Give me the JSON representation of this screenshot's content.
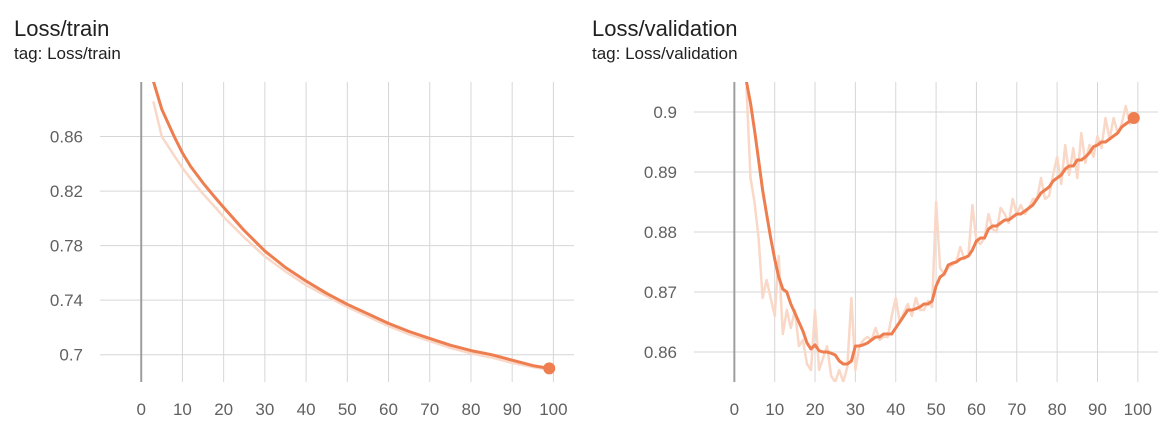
{
  "colors": {
    "line": "#ee7e4f",
    "raw": "#f9d8c8",
    "grid": "#d6d6d6",
    "axis": "#9e9e9e",
    "text": "#616161"
  },
  "cards": [
    {
      "title": "Loss/train",
      "tag": "tag: Loss/train"
    },
    {
      "title": "Loss/validation",
      "tag": "tag: Loss/validation"
    }
  ],
  "chart_data": [
    {
      "type": "line",
      "title": "Loss/train",
      "subtitle": "tag: Loss/train",
      "xlim": [
        -10,
        105
      ],
      "ylim": [
        0.68,
        0.9
      ],
      "xticks": [
        0,
        10,
        20,
        30,
        40,
        50,
        60,
        70,
        80,
        90,
        100
      ],
      "yticks": [
        0.7,
        0.74,
        0.78,
        0.82,
        0.86
      ],
      "ytick_labels": [
        "0.7",
        "0.74",
        "0.78",
        "0.82",
        "0.86"
      ],
      "grid": true,
      "series": [
        {
          "role": "smoothed",
          "x": [
            3,
            5,
            8,
            10,
            12,
            15,
            18,
            20,
            25,
            30,
            35,
            40,
            45,
            50,
            55,
            60,
            65,
            70,
            75,
            80,
            85,
            90,
            95,
            99
          ],
          "y": [
            0.9,
            0.88,
            0.86,
            0.848,
            0.838,
            0.826,
            0.815,
            0.808,
            0.791,
            0.776,
            0.764,
            0.754,
            0.745,
            0.737,
            0.73,
            0.723,
            0.717,
            0.712,
            0.707,
            0.703,
            0.7,
            0.696,
            0.692,
            0.69
          ]
        },
        {
          "role": "raw",
          "x": [
            3,
            5,
            8,
            10,
            12,
            15,
            18,
            20,
            25,
            30,
            35,
            40,
            45,
            50,
            55,
            60,
            65,
            70,
            75,
            80,
            85,
            90,
            95,
            99
          ],
          "y": [
            0.885,
            0.86,
            0.846,
            0.837,
            0.829,
            0.818,
            0.808,
            0.801,
            0.786,
            0.772,
            0.761,
            0.751,
            0.743,
            0.735,
            0.728,
            0.721,
            0.715,
            0.71,
            0.705,
            0.701,
            0.698,
            0.694,
            0.691,
            0.689
          ]
        }
      ],
      "last_point": {
        "x": 99,
        "y": 0.69
      }
    },
    {
      "type": "line",
      "title": "Loss/validation",
      "subtitle": "tag: Loss/validation",
      "xlim": [
        -10,
        105
      ],
      "ylim": [
        0.855,
        0.905
      ],
      "xticks": [
        0,
        10,
        20,
        30,
        40,
        50,
        60,
        70,
        80,
        90,
        100
      ],
      "yticks": [
        0.86,
        0.87,
        0.88,
        0.89,
        0.9
      ],
      "ytick_labels": [
        "0.86",
        "0.87",
        "0.88",
        "0.89",
        "0.9"
      ],
      "grid": true,
      "series": [
        {
          "role": "smoothed",
          "x": [
            3,
            4,
            5,
            6,
            7,
            8,
            9,
            10,
            11,
            12,
            13,
            14,
            15,
            16,
            17,
            18,
            19,
            20,
            21,
            22,
            23,
            24,
            25,
            26,
            27,
            28,
            29,
            30,
            31,
            32,
            33,
            34,
            35,
            36,
            37,
            38,
            39,
            40,
            41,
            42,
            43,
            44,
            45,
            46,
            47,
            48,
            49,
            50,
            51,
            52,
            53,
            54,
            55,
            56,
            57,
            58,
            59,
            60,
            61,
            62,
            63,
            64,
            65,
            66,
            67,
            68,
            69,
            70,
            71,
            72,
            73,
            74,
            75,
            76,
            77,
            78,
            79,
            80,
            81,
            82,
            83,
            84,
            85,
            86,
            87,
            88,
            89,
            90,
            91,
            92,
            93,
            94,
            95,
            96,
            97,
            98,
            99
          ],
          "y": [
            0.905,
            0.9015,
            0.897,
            0.892,
            0.887,
            0.883,
            0.879,
            0.8755,
            0.8725,
            0.8705,
            0.87,
            0.868,
            0.8665,
            0.865,
            0.8635,
            0.8615,
            0.8605,
            0.8612,
            0.8602,
            0.86,
            0.86,
            0.8598,
            0.8595,
            0.8585,
            0.858,
            0.858,
            0.8585,
            0.861,
            0.861,
            0.8612,
            0.8615,
            0.862,
            0.8625,
            0.8625,
            0.863,
            0.863,
            0.863,
            0.864,
            0.865,
            0.866,
            0.867,
            0.867,
            0.8672,
            0.8675,
            0.868,
            0.868,
            0.8685,
            0.871,
            0.8725,
            0.873,
            0.8745,
            0.8748,
            0.875,
            0.8755,
            0.8757,
            0.876,
            0.877,
            0.8785,
            0.879,
            0.879,
            0.8805,
            0.881,
            0.881,
            0.8815,
            0.882,
            0.882,
            0.8825,
            0.883,
            0.883,
            0.8835,
            0.884,
            0.8845,
            0.8855,
            0.8865,
            0.887,
            0.8875,
            0.8885,
            0.889,
            0.8895,
            0.8905,
            0.891,
            0.891,
            0.892,
            0.892,
            0.8925,
            0.8932,
            0.8942,
            0.8945,
            0.895,
            0.895,
            0.8955,
            0.896,
            0.8965,
            0.8975,
            0.898,
            0.8985,
            0.899
          ]
        },
        {
          "role": "raw",
          "x": [
            3,
            4,
            5,
            6,
            7,
            8,
            9,
            10,
            11,
            12,
            13,
            14,
            15,
            16,
            17,
            18,
            19,
            20,
            21,
            22,
            23,
            24,
            25,
            26,
            27,
            28,
            29,
            30,
            31,
            32,
            33,
            34,
            35,
            36,
            37,
            38,
            39,
            40,
            41,
            42,
            43,
            44,
            45,
            46,
            47,
            48,
            49,
            50,
            51,
            52,
            53,
            54,
            55,
            56,
            57,
            58,
            59,
            60,
            61,
            62,
            63,
            64,
            65,
            66,
            67,
            68,
            69,
            70,
            71,
            72,
            73,
            74,
            75,
            76,
            77,
            78,
            79,
            80,
            81,
            82,
            83,
            84,
            85,
            86,
            87,
            88,
            89,
            90,
            91,
            92,
            93,
            94,
            95,
            96,
            97,
            98,
            99
          ],
          "y": [
            0.904,
            0.889,
            0.885,
            0.879,
            0.869,
            0.872,
            0.869,
            0.866,
            0.876,
            0.863,
            0.867,
            0.864,
            0.867,
            0.861,
            0.862,
            0.858,
            0.857,
            0.867,
            0.857,
            0.859,
            0.861,
            0.856,
            0.855,
            0.857,
            0.855,
            0.8575,
            0.869,
            0.857,
            0.861,
            0.862,
            0.8625,
            0.862,
            0.864,
            0.862,
            0.8625,
            0.8625,
            0.866,
            0.869,
            0.865,
            0.8665,
            0.868,
            0.866,
            0.869,
            0.867,
            0.867,
            0.8685,
            0.8675,
            0.885,
            0.874,
            0.873,
            0.874,
            0.8745,
            0.875,
            0.8775,
            0.8755,
            0.876,
            0.8845,
            0.8785,
            0.878,
            0.879,
            0.883,
            0.8805,
            0.88,
            0.884,
            0.883,
            0.8815,
            0.8855,
            0.883,
            0.8845,
            0.883,
            0.884,
            0.8855,
            0.8855,
            0.889,
            0.8855,
            0.886,
            0.8895,
            0.8925,
            0.888,
            0.8945,
            0.8895,
            0.894,
            0.889,
            0.8965,
            0.8915,
            0.8945,
            0.8925,
            0.896,
            0.894,
            0.899,
            0.8955,
            0.899,
            0.8965,
            0.898,
            0.901,
            0.898,
            0.899
          ]
        }
      ],
      "last_point": {
        "x": 99,
        "y": 0.899
      }
    }
  ]
}
